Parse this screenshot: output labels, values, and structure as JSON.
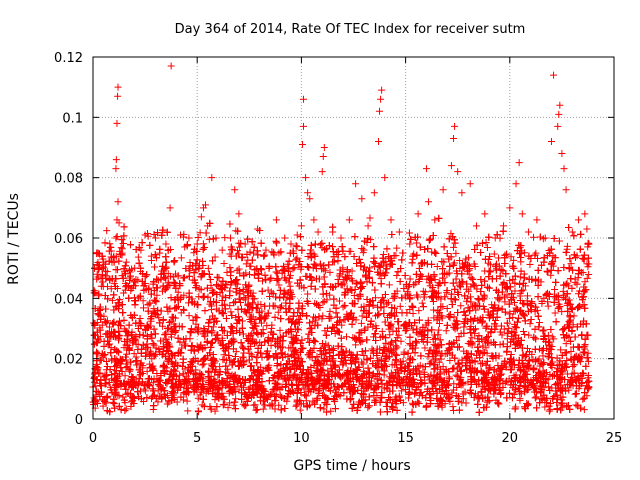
{
  "chart_data": {
    "type": "scatter",
    "title": "Day 364 of 2014, Rate Of TEC Index for receiver sutm",
    "xlabel": "GPS time / hours",
    "ylabel": "ROTI / TECUs",
    "xlim": [
      0,
      25
    ],
    "ylim": [
      0,
      0.12
    ],
    "grid": true,
    "marker": "+",
    "color": "#ff0000",
    "xticks": [
      0,
      5,
      10,
      15,
      20,
      25
    ],
    "xtick_labels": [
      "0",
      "5",
      "10",
      "15",
      "20",
      "25"
    ],
    "yticks": [
      0,
      0.02,
      0.04,
      0.06,
      0.08,
      0.1,
      0.12
    ],
    "ytick_labels": [
      "0",
      "0.02",
      "0.04",
      "0.06",
      "0.08",
      "0.1",
      "0.12"
    ],
    "series": [
      {
        "name": "ROTI",
        "points": [
          [
            0.1,
            0.042
          ],
          [
            0.2,
            0.048
          ],
          [
            0.25,
            0.055
          ],
          [
            0.3,
            0.05
          ],
          [
            0.4,
            0.044
          ],
          [
            0.5,
            0.052
          ],
          [
            0.6,
            0.049
          ],
          [
            0.8,
            0.046
          ],
          [
            1.0,
            0.054
          ],
          [
            1.1,
            0.06
          ],
          [
            1.15,
            0.066
          ],
          [
            1.2,
            0.072
          ],
          [
            1.1,
            0.083
          ],
          [
            1.12,
            0.086
          ],
          [
            1.15,
            0.098
          ],
          [
            1.18,
            0.107
          ],
          [
            1.2,
            0.11
          ],
          [
            1.25,
            0.065
          ],
          [
            1.4,
            0.055
          ],
          [
            1.6,
            0.052
          ],
          [
            2.0,
            0.05
          ],
          [
            2.3,
            0.056
          ],
          [
            2.5,
            0.061
          ],
          [
            2.8,
            0.054
          ],
          [
            3.0,
            0.06
          ],
          [
            3.2,
            0.055
          ],
          [
            3.5,
            0.058
          ],
          [
            3.7,
            0.07
          ],
          [
            3.75,
            0.117
          ],
          [
            3.9,
            0.052
          ],
          [
            4.2,
            0.061
          ],
          [
            4.4,
            0.057
          ],
          [
            4.6,
            0.06
          ],
          [
            5.0,
            0.058
          ],
          [
            5.2,
            0.067
          ],
          [
            5.3,
            0.07
          ],
          [
            5.4,
            0.071
          ],
          [
            5.5,
            0.064
          ],
          [
            5.7,
            0.08
          ],
          [
            5.9,
            0.06
          ],
          [
            6.2,
            0.056
          ],
          [
            6.6,
            0.06
          ],
          [
            6.8,
            0.076
          ],
          [
            7.0,
            0.068
          ],
          [
            7.3,
            0.058
          ],
          [
            7.7,
            0.055
          ],
          [
            7.9,
            0.063
          ],
          [
            8.3,
            0.056
          ],
          [
            8.8,
            0.066
          ],
          [
            9.2,
            0.06
          ],
          [
            9.5,
            0.058
          ],
          [
            9.8,
            0.061
          ],
          [
            10.0,
            0.064
          ],
          [
            10.05,
            0.091
          ],
          [
            10.1,
            0.097
          ],
          [
            10.1,
            0.106
          ],
          [
            10.2,
            0.08
          ],
          [
            10.3,
            0.075
          ],
          [
            10.4,
            0.073
          ],
          [
            10.6,
            0.066
          ],
          [
            10.8,
            0.062
          ],
          [
            11.0,
            0.082
          ],
          [
            11.05,
            0.087
          ],
          [
            11.1,
            0.09
          ],
          [
            11.5,
            0.062
          ],
          [
            11.9,
            0.06
          ],
          [
            12.3,
            0.066
          ],
          [
            12.6,
            0.078
          ],
          [
            12.9,
            0.073
          ],
          [
            13.2,
            0.064
          ],
          [
            13.5,
            0.075
          ],
          [
            13.7,
            0.092
          ],
          [
            13.75,
            0.102
          ],
          [
            13.8,
            0.106
          ],
          [
            13.85,
            0.109
          ],
          [
            14.0,
            0.08
          ],
          [
            14.3,
            0.066
          ],
          [
            14.7,
            0.062
          ],
          [
            15.2,
            0.058
          ],
          [
            15.6,
            0.068
          ],
          [
            16.0,
            0.083
          ],
          [
            16.1,
            0.072
          ],
          [
            16.4,
            0.066
          ],
          [
            16.8,
            0.076
          ],
          [
            17.2,
            0.084
          ],
          [
            17.3,
            0.093
          ],
          [
            17.35,
            0.097
          ],
          [
            17.5,
            0.082
          ],
          [
            17.7,
            0.075
          ],
          [
            18.1,
            0.078
          ],
          [
            18.4,
            0.064
          ],
          [
            18.8,
            0.068
          ],
          [
            19.3,
            0.06
          ],
          [
            19.7,
            0.064
          ],
          [
            20.0,
            0.07
          ],
          [
            20.3,
            0.078
          ],
          [
            20.45,
            0.085
          ],
          [
            20.6,
            0.068
          ],
          [
            20.9,
            0.062
          ],
          [
            21.3,
            0.066
          ],
          [
            21.7,
            0.06
          ],
          [
            22.0,
            0.092
          ],
          [
            22.1,
            0.114
          ],
          [
            22.3,
            0.097
          ],
          [
            22.35,
            0.101
          ],
          [
            22.4,
            0.104
          ],
          [
            22.5,
            0.088
          ],
          [
            22.6,
            0.083
          ],
          [
            22.7,
            0.076
          ],
          [
            23.0,
            0.062
          ],
          [
            23.3,
            0.066
          ],
          [
            23.6,
            0.068
          ],
          [
            23.7,
            0.063
          ],
          [
            23.8,
            0.058
          ]
        ]
      }
    ],
    "dense_band": {
      "description": "dense cloud of ROTI samples every ~30 s across the day",
      "x_range": [
        0,
        23.8
      ],
      "y_min": 0.002,
      "y_center": 0.02,
      "y_spread_max": 0.05,
      "count": 9000
    }
  }
}
